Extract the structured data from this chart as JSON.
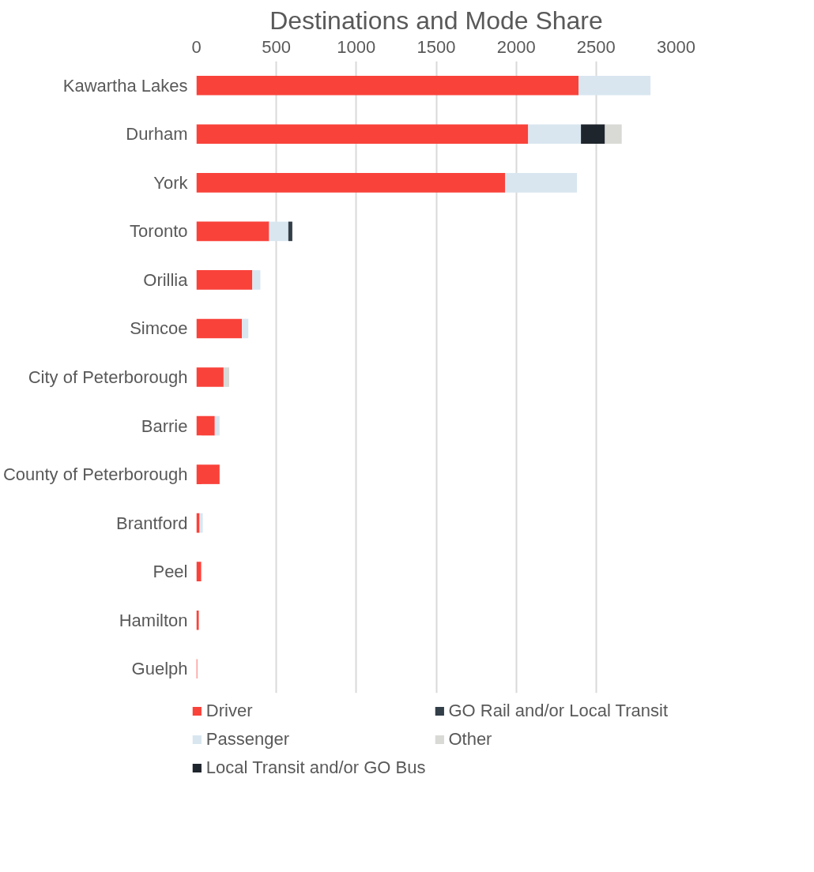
{
  "chart_data": {
    "type": "bar",
    "orientation": "horizontal",
    "stacked": true,
    "title": "Destinations and Mode Share",
    "categories": [
      "Kawartha Lakes",
      "Durham",
      "York",
      "Toronto",
      "Orillia",
      "Simcoe",
      "City of Peterborough",
      "Barrie",
      "County of Peterborough",
      "Brantford",
      "Peel",
      "Hamilton",
      "Guelph"
    ],
    "series": [
      {
        "name": "Driver",
        "color": "#f9423a",
        "values": [
          2390,
          2075,
          1930,
          455,
          350,
          285,
          170,
          115,
          145,
          20,
          30,
          15,
          5
        ]
      },
      {
        "name": "Passenger",
        "color": "#d9e6f0",
        "values": [
          450,
          330,
          450,
          120,
          50,
          40,
          0,
          30,
          0,
          20,
          0,
          0,
          0
        ]
      },
      {
        "name": "Local Transit and/or GO Bus",
        "color": "#1e252c",
        "values": [
          0,
          150,
          0,
          0,
          0,
          0,
          0,
          0,
          0,
          0,
          0,
          0,
          0
        ]
      },
      {
        "name": "GO Rail and/or Local Transit",
        "color": "#323e48",
        "values": [
          0,
          0,
          0,
          25,
          0,
          0,
          0,
          0,
          0,
          0,
          0,
          0,
          0
        ]
      },
      {
        "name": "Other",
        "color": "#d9d9d6",
        "values": [
          0,
          105,
          0,
          0,
          0,
          0,
          35,
          0,
          0,
          0,
          0,
          0,
          0
        ]
      }
    ],
    "xlim": [
      0,
      3000
    ],
    "xticks": [
      0,
      500,
      1000,
      1500,
      2000,
      2500,
      3000
    ],
    "grid": "x",
    "legend": "bottom"
  }
}
